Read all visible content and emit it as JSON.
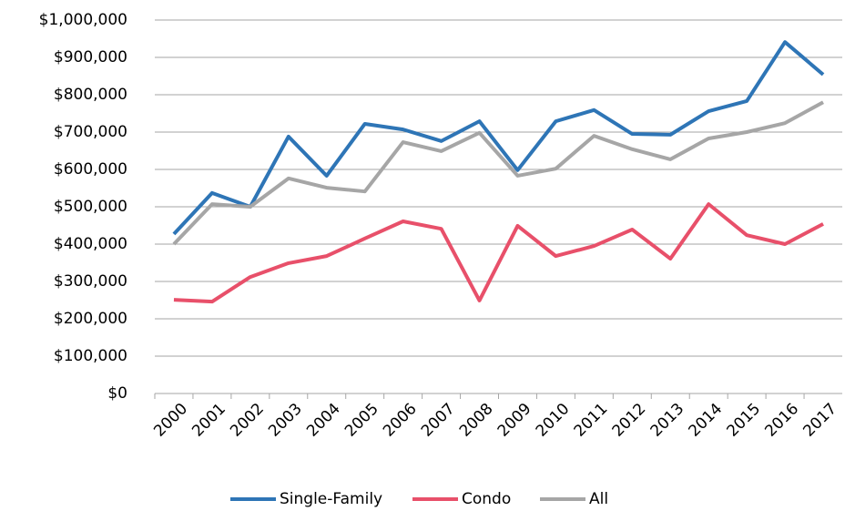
{
  "chart_data": {
    "type": "line",
    "categories": [
      "2000",
      "2001",
      "2002",
      "2003",
      "2004",
      "2005",
      "2006",
      "2007",
      "2008",
      "2009",
      "2010",
      "2011",
      "2012",
      "2013",
      "2014",
      "2015",
      "2016",
      "2017"
    ],
    "series": [
      {
        "name": "Single-Family",
        "color": "#2e75b6",
        "values": [
          427000,
          537000,
          500000,
          688000,
          583000,
          722000,
          707000,
          676000,
          729000,
          598000,
          729000,
          759000,
          695000,
          693000,
          756000,
          783000,
          941000,
          854000
        ]
      },
      {
        "name": "Condo",
        "color": "#e8506a",
        "values": [
          251000,
          246000,
          312000,
          349000,
          368000,
          415000,
          461000,
          441000,
          249000,
          449000,
          368000,
          395000,
          439000,
          361000,
          507000,
          424000,
          400000,
          454000
        ]
      },
      {
        "name": "All",
        "color": "#a6a6a6",
        "values": [
          400000,
          507000,
          500000,
          576000,
          551000,
          541000,
          673000,
          649000,
          698000,
          583000,
          602000,
          690000,
          654000,
          627000,
          683000,
          700000,
          724000,
          780000
        ]
      }
    ],
    "ylim": [
      0,
      1000000
    ],
    "yticks": [
      {
        "value": 0,
        "label": "$0"
      },
      {
        "value": 100000,
        "label": "$100,000"
      },
      {
        "value": 200000,
        "label": "$200,000"
      },
      {
        "value": 300000,
        "label": "$300,000"
      },
      {
        "value": 400000,
        "label": "$400,000"
      },
      {
        "value": 500000,
        "label": "$500,000"
      },
      {
        "value": 600000,
        "label": "$600,000"
      },
      {
        "value": 700000,
        "label": "$700,000"
      },
      {
        "value": 800000,
        "label": "$800,000"
      },
      {
        "value": 900000,
        "label": "$900,000"
      },
      {
        "value": 1000000,
        "label": "$1,000,000"
      }
    ],
    "grid": true,
    "legend": "bottom"
  }
}
